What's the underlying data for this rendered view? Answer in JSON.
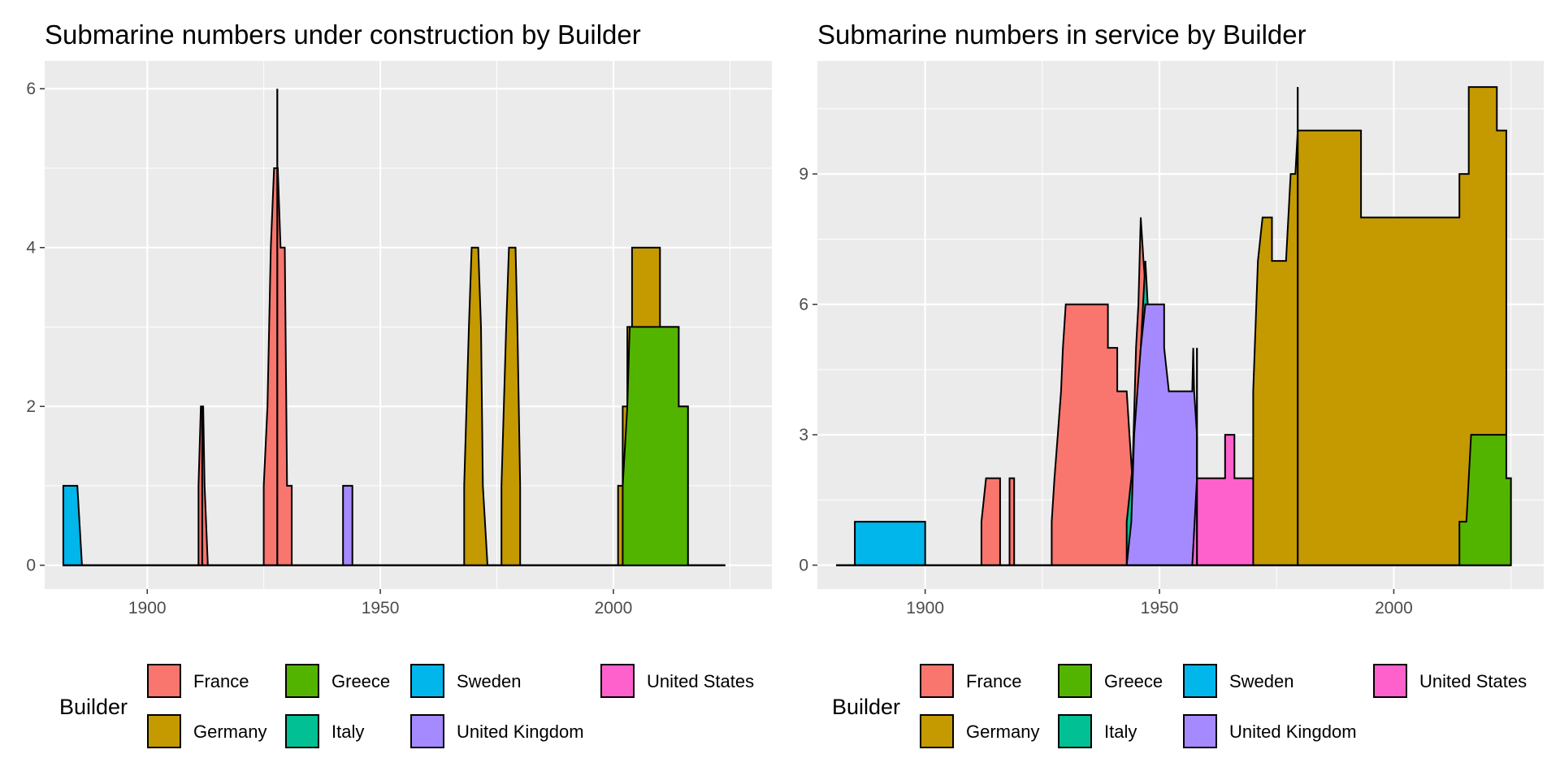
{
  "chart_data": [
    {
      "type": "area",
      "stacked": true,
      "step": true,
      "title": "Submarine numbers under construction by Builder",
      "xlabel": "",
      "ylabel": "",
      "xlim": [
        1878,
        2034
      ],
      "ylim": [
        -0.3,
        6.35
      ],
      "x_ticks": [
        1900,
        1950,
        2000
      ],
      "y_ticks": [
        0,
        2,
        4,
        6
      ],
      "grid": true,
      "legend": {
        "title": "Builder",
        "position": "bottom"
      },
      "series": [
        {
          "name": "Sweden",
          "color": "#00B6EB",
          "points": [
            [
              1882,
              1
            ],
            [
              1885,
              1
            ],
            [
              1886,
              0
            ],
            [
              2024,
              0
            ]
          ]
        },
        {
          "name": "United Kingdom",
          "color": "#A58AFF",
          "points": [
            [
              1882,
              0
            ],
            [
              1942,
              0
            ],
            [
              1942,
              1
            ],
            [
              1944,
              1
            ],
            [
              1944,
              0
            ],
            [
              2024,
              0
            ]
          ]
        },
        {
          "name": "France",
          "color": "#F8766D",
          "points": [
            [
              1882,
              0
            ],
            [
              1911,
              0
            ],
            [
              1911,
              1
            ],
            [
              1911.5,
              2
            ],
            [
              1912,
              2
            ],
            [
              1912.3,
              1
            ],
            [
              1913,
              0
            ],
            [
              1925,
              0
            ],
            [
              1925,
              1
            ],
            [
              1925.8,
              2
            ],
            [
              1926.5,
              4
            ],
            [
              1927.2,
              5
            ],
            [
              1928,
              5
            ],
            [
              1928.6,
              4
            ],
            [
              1929.5,
              4
            ],
            [
              1930,
              1
            ],
            [
              1931,
              1
            ],
            [
              1931,
              0
            ],
            [
              2024,
              0
            ]
          ]
        },
        {
          "name": "Germany",
          "color": "#C49A00",
          "points": [
            [
              1882,
              0
            ],
            [
              1968,
              0
            ],
            [
              1968,
              1
            ],
            [
              1969,
              3
            ],
            [
              1969.6,
              4
            ],
            [
              1971,
              4
            ],
            [
              1971.6,
              3
            ],
            [
              1972,
              1
            ],
            [
              1973,
              0
            ],
            [
              1976,
              0
            ],
            [
              1976,
              1
            ],
            [
              1977,
              3
            ],
            [
              1977.6,
              4
            ],
            [
              1979,
              4
            ],
            [
              1979.4,
              3
            ],
            [
              1980,
              1
            ],
            [
              1980,
              0
            ],
            [
              2001,
              0
            ],
            [
              2001,
              1
            ],
            [
              2002,
              1
            ],
            [
              2002,
              2
            ],
            [
              2003,
              2
            ],
            [
              2003,
              3
            ],
            [
              2004,
              3
            ],
            [
              2004,
              4
            ],
            [
              2010,
              4
            ],
            [
              2010,
              3
            ],
            [
              2014,
              3
            ],
            [
              2014,
              2
            ],
            [
              2016,
              2
            ],
            [
              2016,
              0
            ],
            [
              2024,
              0
            ]
          ]
        },
        {
          "name": "Greece",
          "color": "#53B400",
          "points": [
            [
              1882,
              0
            ],
            [
              2002,
              0
            ],
            [
              2002,
              1
            ],
            [
              2003,
              2
            ],
            [
              2003.5,
              3
            ],
            [
              2014,
              3
            ],
            [
              2014,
              2
            ],
            [
              2016,
              2
            ],
            [
              2016,
              0
            ],
            [
              2024,
              0
            ]
          ]
        }
      ],
      "spikes": [
        [
          1927.9,
          6
        ],
        [
          1911.8,
          2
        ]
      ]
    },
    {
      "type": "area",
      "stacked": true,
      "step": true,
      "title": "Submarine numbers in service by Builder",
      "xlabel": "",
      "ylabel": "",
      "xlim": [
        1877,
        2032
      ],
      "ylim": [
        -0.55,
        11.6
      ],
      "x_ticks": [
        1900,
        1950,
        2000
      ],
      "y_ticks": [
        0,
        3,
        6,
        9
      ],
      "grid": true,
      "legend": {
        "title": "Builder",
        "position": "bottom"
      },
      "series": [
        {
          "name": "Sweden",
          "color": "#00B6EB",
          "points": [
            [
              1881,
              0
            ],
            [
              1885,
              0
            ],
            [
              1885,
              1
            ],
            [
              1900,
              1
            ],
            [
              1900,
              0
            ],
            [
              2025,
              0
            ]
          ]
        },
        {
          "name": "France",
          "color": "#F8766D",
          "points": [
            [
              1881,
              0
            ],
            [
              1912,
              0
            ],
            [
              1912,
              1
            ],
            [
              1913,
              2
            ],
            [
              1916,
              2
            ],
            [
              1916,
              0
            ],
            [
              1918,
              0
            ],
            [
              1918,
              2
            ],
            [
              1919,
              2
            ],
            [
              1919,
              0
            ],
            [
              1927,
              0
            ],
            [
              1927,
              1
            ],
            [
              1927.6,
              2
            ],
            [
              1928.3,
              3
            ],
            [
              1929,
              4
            ],
            [
              1929.4,
              5
            ],
            [
              1930,
              6
            ],
            [
              1939,
              6
            ],
            [
              1939,
              5
            ],
            [
              1941,
              5
            ],
            [
              1941,
              4
            ],
            [
              1943,
              4
            ],
            [
              1943.6,
              3
            ],
            [
              1944.2,
              2
            ],
            [
              1945,
              5
            ],
            [
              1945.5,
              6
            ],
            [
              1946,
              8
            ],
            [
              1946.6,
              7
            ],
            [
              1947.3,
              6
            ],
            [
              1948,
              5
            ],
            [
              1949,
              2
            ],
            [
              1950,
              0
            ],
            [
              2025,
              0
            ]
          ]
        },
        {
          "name": "Italy",
          "color": "#00C094",
          "points": [
            [
              1881,
              0
            ],
            [
              1943,
              0
            ],
            [
              1943,
              1
            ],
            [
              1944,
              2
            ],
            [
              1945,
              3
            ],
            [
              1945.5,
              4
            ],
            [
              1946,
              5
            ],
            [
              1947,
              7
            ],
            [
              1947.5,
              6
            ],
            [
              1948,
              0
            ],
            [
              2025,
              0
            ]
          ]
        },
        {
          "name": "United Kingdom",
          "color": "#A58AFF",
          "points": [
            [
              1881,
              0
            ],
            [
              1943,
              0
            ],
            [
              1944,
              1
            ],
            [
              1944.6,
              3
            ],
            [
              1945.3,
              4
            ],
            [
              1946,
              5
            ],
            [
              1947,
              6
            ],
            [
              1951,
              6
            ],
            [
              1951,
              5
            ],
            [
              1952,
              4
            ],
            [
              1957,
              4
            ],
            [
              1957.2,
              5
            ],
            [
              1957.4,
              4
            ],
            [
              1958,
              3
            ],
            [
              1958,
              0
            ],
            [
              2025,
              0
            ]
          ]
        },
        {
          "name": "United States",
          "color": "#FF61CC",
          "points": [
            [
              1881,
              0
            ],
            [
              1957,
              0
            ],
            [
              1958,
              2
            ],
            [
              1964,
              2
            ],
            [
              1964,
              3
            ],
            [
              1966,
              3
            ],
            [
              1966,
              2
            ],
            [
              1971,
              2
            ],
            [
              1971,
              3
            ],
            [
              1972,
              4
            ],
            [
              1974,
              4
            ],
            [
              1974,
              3
            ],
            [
              1979,
              3
            ],
            [
              1979,
              2
            ],
            [
              1993,
              2
            ],
            [
              1993,
              0
            ],
            [
              2025,
              0
            ]
          ]
        },
        {
          "name": "Germany",
          "color": "#C49A00",
          "points": [
            [
              1881,
              0
            ],
            [
              1970,
              0
            ],
            [
              1970,
              4
            ],
            [
              1971,
              7
            ],
            [
              1972,
              8
            ],
            [
              1974,
              8
            ],
            [
              1974,
              7
            ],
            [
              1977,
              7
            ],
            [
              1978,
              9
            ],
            [
              1979,
              9
            ],
            [
              1979.5,
              10
            ],
            [
              1993,
              10
            ],
            [
              1993,
              8
            ],
            [
              2014,
              8
            ],
            [
              2014,
              9
            ],
            [
              2016,
              9
            ],
            [
              2016,
              11
            ],
            [
              2022,
              11
            ],
            [
              2022,
              10
            ],
            [
              2024,
              10
            ],
            [
              2024,
              2
            ],
            [
              2025,
              2
            ],
            [
              2025,
              0
            ]
          ]
        },
        {
          "name": "Greece",
          "color": "#53B400",
          "points": [
            [
              1881,
              0
            ],
            [
              2014,
              0
            ],
            [
              2014,
              1
            ],
            [
              2015.5,
              1
            ],
            [
              2016,
              2
            ],
            [
              2016.5,
              3
            ],
            [
              2024,
              3
            ],
            [
              2024,
              2
            ],
            [
              2025,
              2
            ],
            [
              2025,
              0
            ]
          ]
        }
      ],
      "spikes": [
        [
          1958,
          5
        ],
        [
          1979.5,
          11
        ]
      ]
    }
  ],
  "legend_items": [
    {
      "name": "France",
      "color": "#F8766D"
    },
    {
      "name": "Germany",
      "color": "#C49A00"
    },
    {
      "name": "Greece",
      "color": "#53B400"
    },
    {
      "name": "Italy",
      "color": "#00C094"
    },
    {
      "name": "Sweden",
      "color": "#00B6EB"
    },
    {
      "name": "United Kingdom",
      "color": "#A58AFF"
    },
    {
      "name": "United States",
      "color": "#FF61CC"
    }
  ],
  "legend_title": "Builder"
}
